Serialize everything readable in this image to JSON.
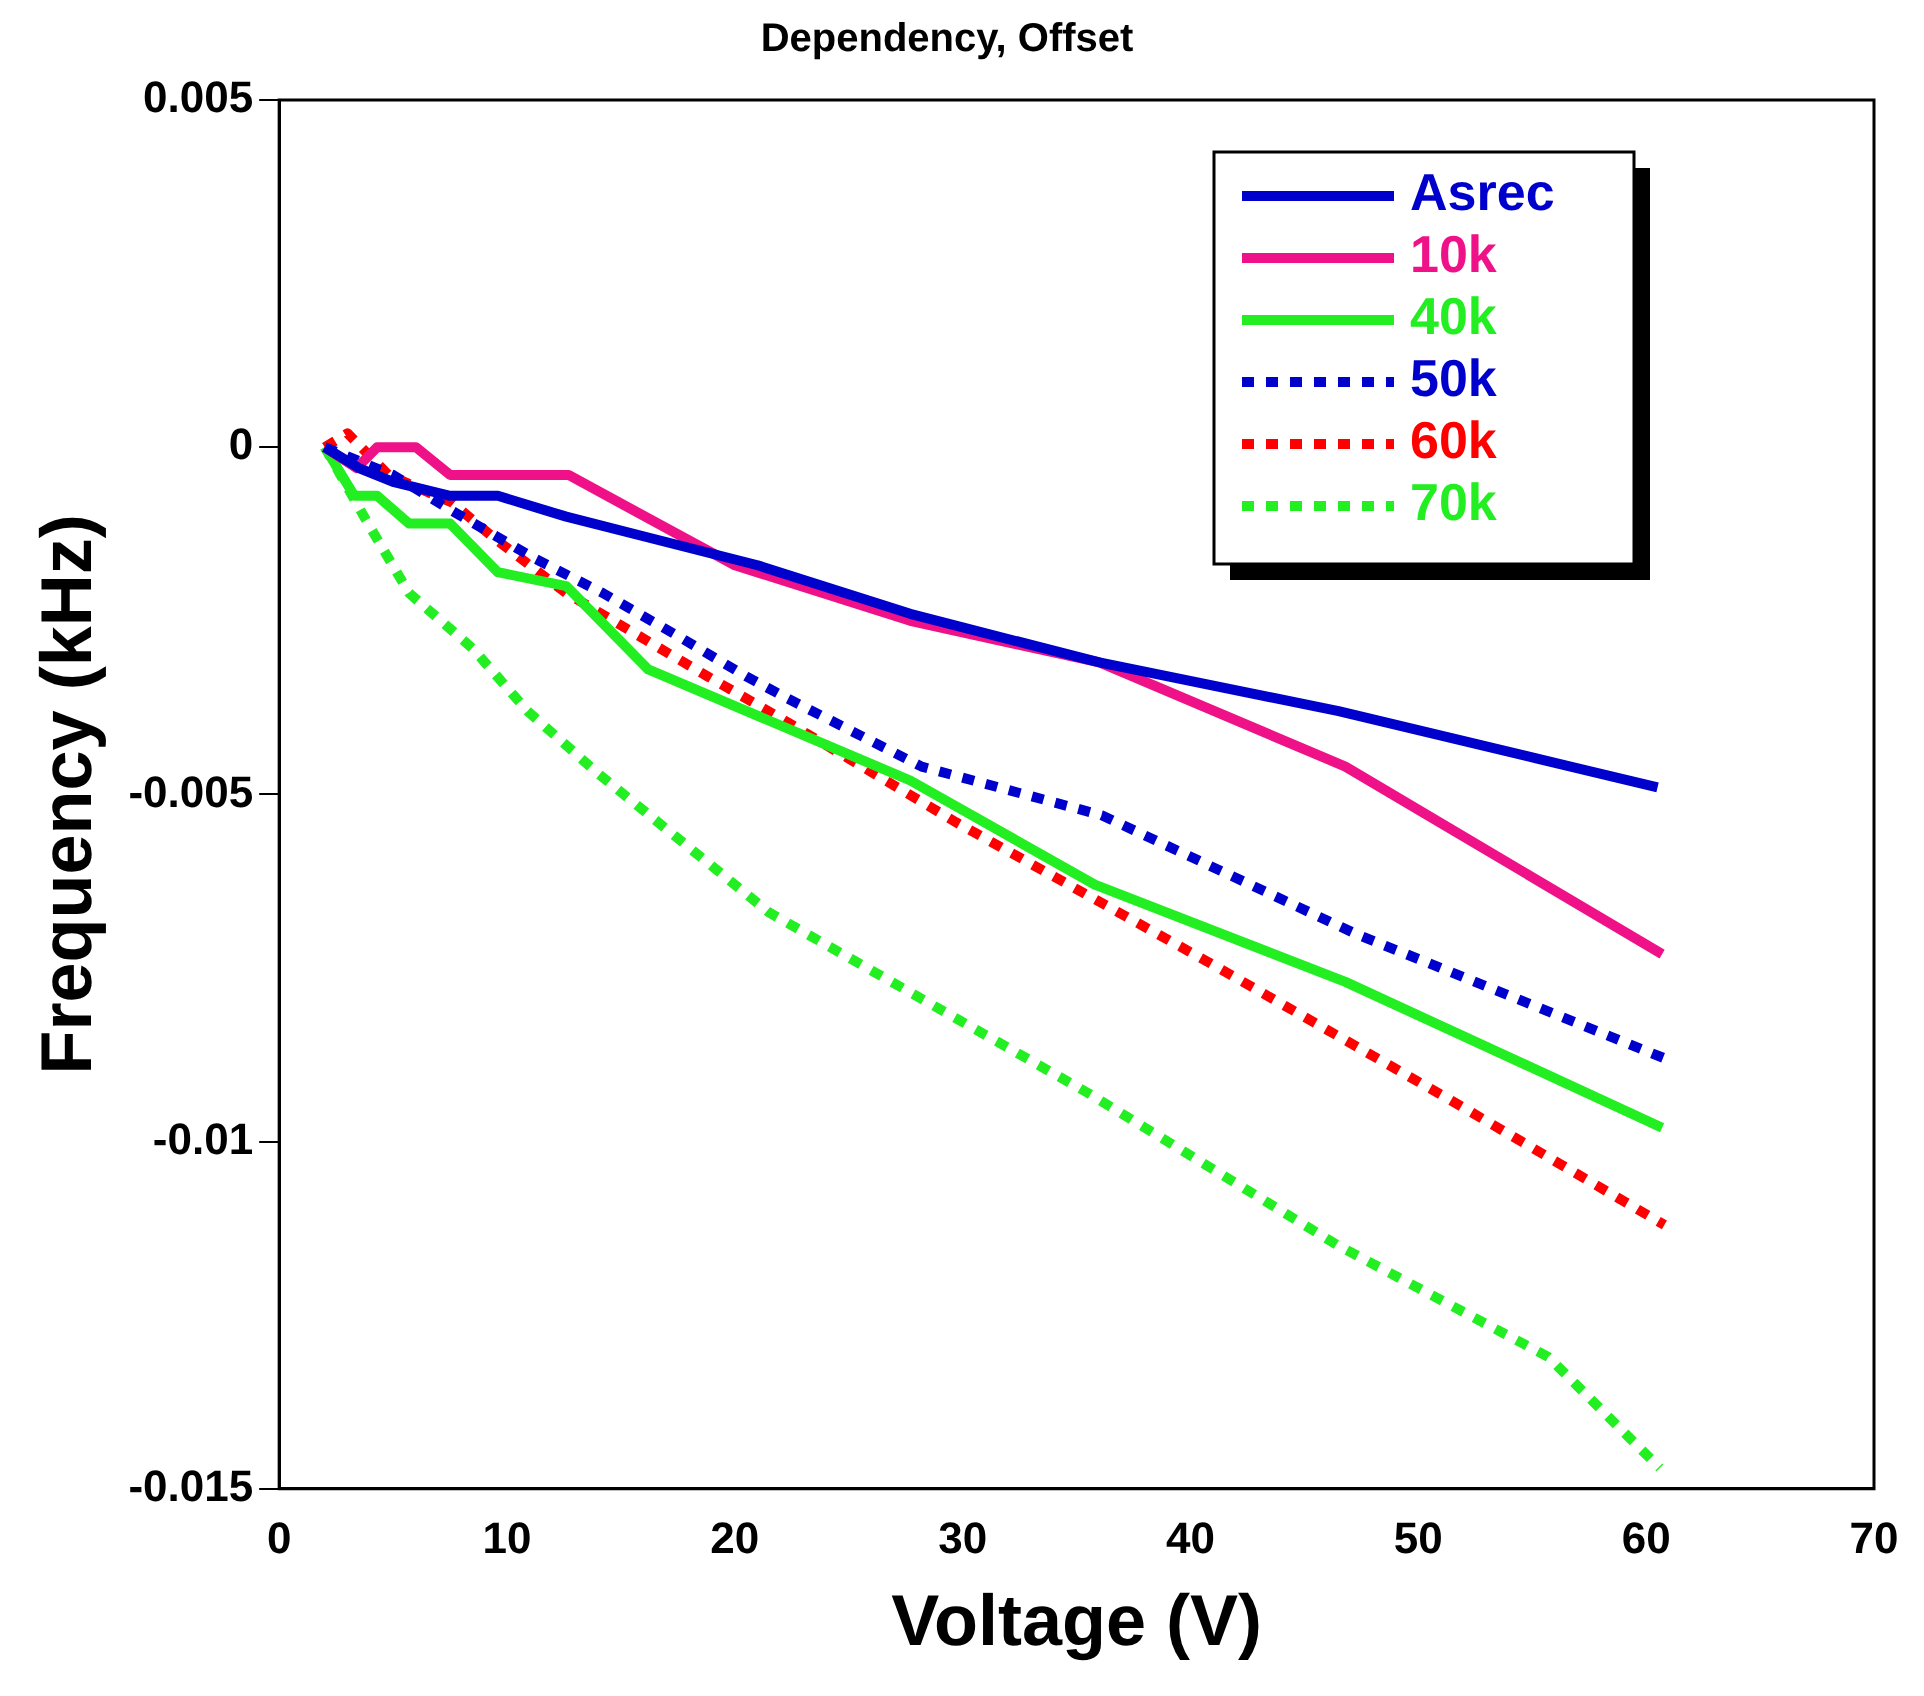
{
  "chart_data": {
    "type": "line",
    "title": "Dependency, Offset",
    "xlabel": "Voltage (V)",
    "ylabel": "Frequency (kHz)",
    "xlim": [
      0,
      70
    ],
    "xticks": [
      0,
      10,
      20,
      30,
      40,
      50,
      60,
      70
    ],
    "ylim": [
      -0.015,
      0.005
    ],
    "yticks": [
      -0.015,
      -0.01,
      -0.005,
      0,
      0.005
    ],
    "grid": false,
    "legend": "top right",
    "marker": "none",
    "series": [
      {
        "name": "Asrec",
        "color": "#0000cc",
        "line_style": "solid",
        "x": [
          2,
          3.5,
          5,
          7.5,
          9.6,
          12.6,
          16.2,
          21,
          27.7,
          36,
          46.5,
          60.5
        ],
        "values": [
          0,
          -0.0003,
          -0.0005,
          -0.0007,
          -0.0007,
          -0.001,
          -0.0013,
          -0.0017,
          -0.0024,
          -0.0031,
          -0.0038,
          -0.0049
        ]
      },
      {
        "name": "10k",
        "color": "#ee1188",
        "line_style": "solid",
        "x": [
          2,
          3.4,
          4.3,
          6,
          7.5,
          12.7,
          20,
          27.7,
          36,
          46.8,
          60.7
        ],
        "values": [
          0,
          -0.0003,
          0,
          0,
          -0.0004,
          -0.0004,
          -0.0017,
          -0.0025,
          -0.0031,
          -0.0046,
          -0.0073
        ]
      },
      {
        "name": "40k",
        "color": "#22ee22",
        "line_style": "solid",
        "x": [
          2,
          3.3,
          4.3,
          5.7,
          7.5,
          9.6,
          12.6,
          16.2,
          27.7,
          35.8,
          46.8,
          60.7
        ],
        "values": [
          0,
          -0.0007,
          -0.0007,
          -0.0011,
          -0.0011,
          -0.0018,
          -0.002,
          -0.0032,
          -0.0048,
          -0.0063,
          -0.0077,
          -0.0098
        ]
      },
      {
        "name": "50k",
        "color": "#0000cc",
        "line_style": "dotted",
        "x": [
          2,
          5,
          7.5,
          11.2,
          14.2,
          17.4,
          20.5,
          22.2,
          28.2,
          36.1,
          47.2,
          60.8
        ],
        "values": [
          0,
          -0.0004,
          -0.0009,
          -0.0016,
          -0.0021,
          -0.0027,
          -0.0033,
          -0.0036,
          -0.0046,
          -0.0053,
          -0.007,
          -0.0088
        ]
      },
      {
        "name": "60k",
        "color": "#ff0000",
        "line_style": "dotted",
        "x": [
          2,
          3,
          4.8,
          7.6,
          9.4,
          12.6,
          15.7,
          18.8,
          22,
          29.7,
          40.7,
          51.4,
          60.8
        ],
        "values": [
          0,
          0.0002,
          -0.0004,
          -0.0008,
          -0.0013,
          -0.0021,
          -0.0027,
          -0.0033,
          -0.0039,
          -0.0054,
          -0.0074,
          -0.0094,
          -0.0112
        ]
      },
      {
        "name": "70k",
        "color": "#22ee22",
        "line_style": "dotted",
        "x": [
          2,
          3.9,
          5.7,
          8.5,
          10.9,
          14,
          21.5,
          35.5,
          46.5,
          55.7,
          60.6
        ],
        "values": [
          0,
          -0.0011,
          -0.0021,
          -0.0029,
          -0.0038,
          -0.0047,
          -0.0067,
          -0.0093,
          -0.0115,
          -0.0131,
          -0.0147
        ]
      }
    ]
  }
}
